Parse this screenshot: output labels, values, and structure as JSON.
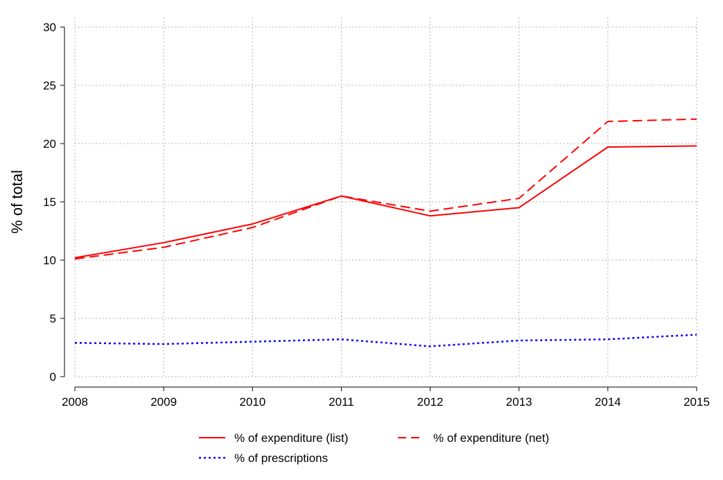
{
  "chart_data": {
    "type": "line",
    "title": "",
    "xlabel": "",
    "ylabel": "% of total",
    "x": [
      2008,
      2009,
      2010,
      2011,
      2012,
      2013,
      2014,
      2015
    ],
    "x_tick_labels": [
      "2008",
      "2009",
      "2010",
      "2011",
      "2012",
      "2013",
      "2014",
      "2015"
    ],
    "ylim": [
      0,
      30
    ],
    "y_ticks": [
      0,
      5,
      10,
      15,
      20,
      25,
      30
    ],
    "y_tick_labels": [
      "0",
      "5",
      "10",
      "15",
      "20",
      "25",
      "30"
    ],
    "grid": true,
    "legend_position": "bottom",
    "series": [
      {
        "name": "% of expenditure (list)",
        "style": "solid",
        "color": "#ff0000",
        "values": [
          10.2,
          11.5,
          13.1,
          15.5,
          13.8,
          14.5,
          19.7,
          19.8
        ]
      },
      {
        "name": "% of expenditure (net)",
        "style": "dashed",
        "color": "#ff0000",
        "values": [
          10.1,
          11.1,
          12.8,
          15.5,
          14.2,
          15.3,
          21.9,
          22.1
        ]
      },
      {
        "name": "% of prescriptions",
        "style": "dotted",
        "color": "#0000ff",
        "values": [
          2.9,
          2.8,
          3.0,
          3.2,
          2.6,
          3.1,
          3.2,
          3.6
        ]
      }
    ]
  }
}
